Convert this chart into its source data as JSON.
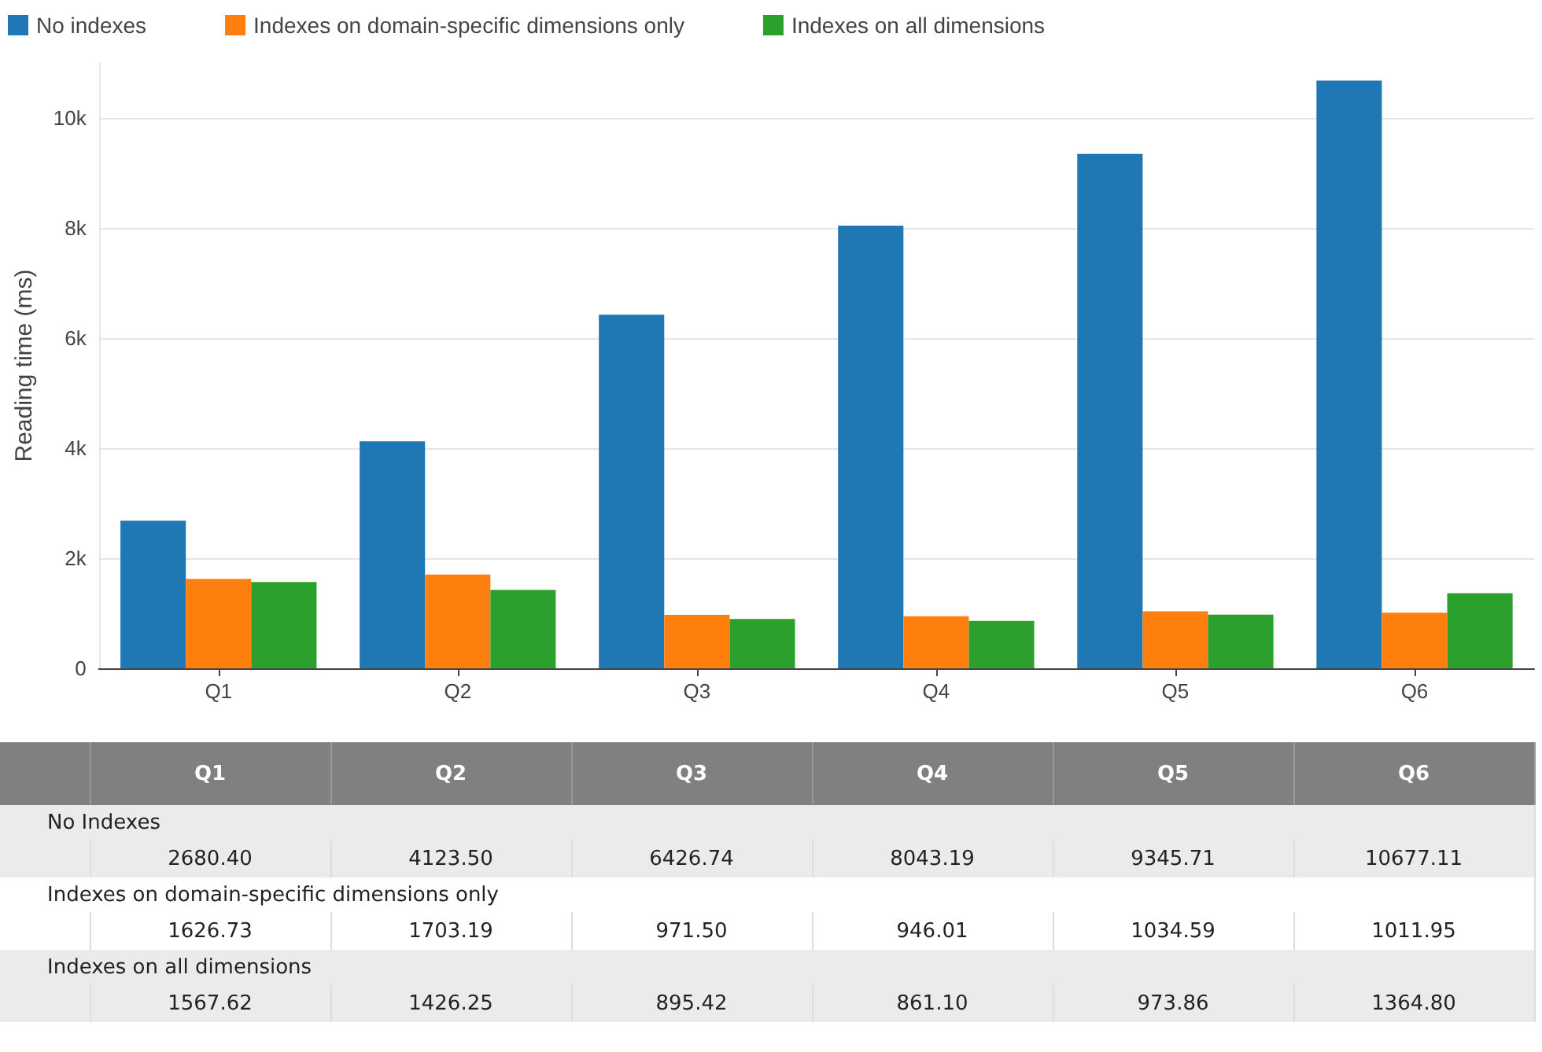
{
  "chart_data": {
    "type": "bar",
    "ylabel": "Reading time (ms)",
    "categories": [
      "Q1",
      "Q2",
      "Q3",
      "Q4",
      "Q5",
      "Q6"
    ],
    "series": [
      {
        "name": "No indexes",
        "color": "#1f77b4",
        "values": [
          2680.4,
          4123.5,
          6426.74,
          8043.19,
          9345.71,
          10677.11
        ],
        "value_labels": [
          "2680.40",
          "4123.50",
          "6426.74",
          "8043.19",
          "9345.71",
          "10677.11"
        ]
      },
      {
        "name": "Indexes on domain-specific dimensions only",
        "color": "#ff7f0e",
        "values": [
          1626.73,
          1703.19,
          971.5,
          946.01,
          1034.59,
          1011.95
        ],
        "value_labels": [
          "1626.73",
          "1703.19",
          "971.50",
          "946.01",
          "1034.59",
          "1011.95"
        ]
      },
      {
        "name": "Indexes on all dimensions",
        "color": "#2ca02c",
        "values": [
          1567.62,
          1426.25,
          895.42,
          861.1,
          973.86,
          1364.8
        ],
        "value_labels": [
          "1567.62",
          "1426.25",
          "895.42",
          "861.10",
          "973.86",
          "1364.80"
        ]
      }
    ],
    "annotations": [
      "No Indexes",
      "Indexes on domain-specific dimensions only",
      "Indexes on all dimensions"
    ],
    "ylim": [
      0,
      11000
    ],
    "yticks": [
      0,
      {
        "value": 2000,
        "label": "2k"
      },
      {
        "value": 4000,
        "label": "4k"
      },
      {
        "value": 6000,
        "label": "6k"
      },
      {
        "value": 8000,
        "label": "8k"
      },
      {
        "value": 10000,
        "label": "10k"
      }
    ],
    "grid": "y",
    "legend": "top left"
  }
}
